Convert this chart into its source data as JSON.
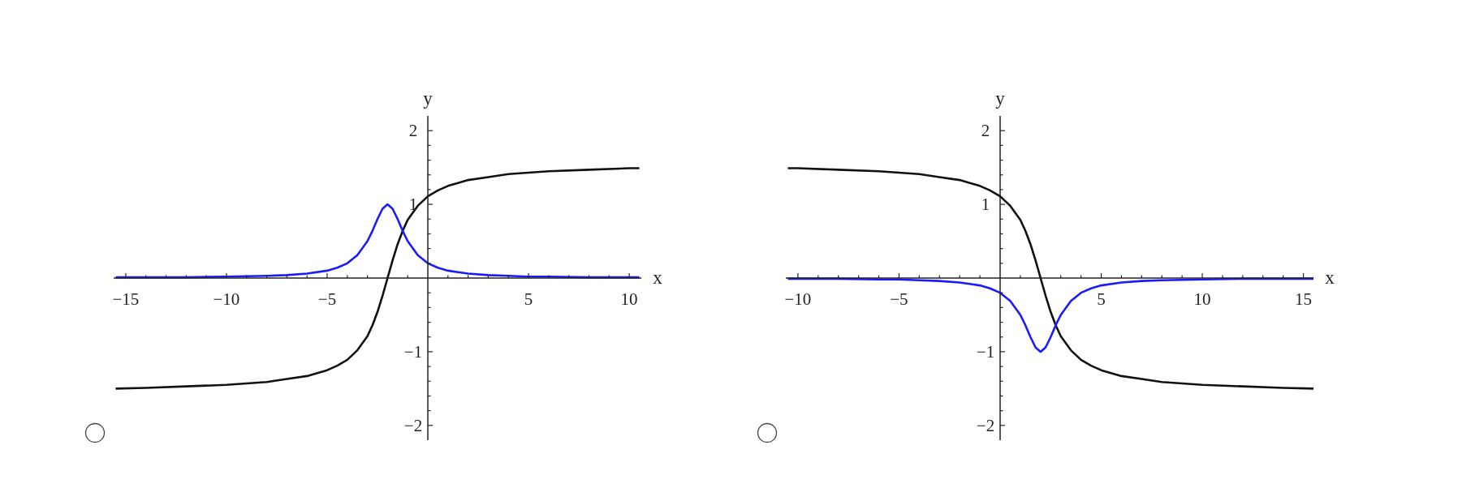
{
  "chart_data": [
    {
      "type": "line",
      "xlabel": "x",
      "ylabel": "y",
      "xlim": [
        -15.6,
        10.6
      ],
      "ylim": [
        -2.2,
        2.2
      ],
      "xticks": [
        {
          "value": -15,
          "label": "−15"
        },
        {
          "value": -14,
          "label": null
        },
        {
          "value": -13,
          "label": null
        },
        {
          "value": -12,
          "label": null
        },
        {
          "value": -11,
          "label": null
        },
        {
          "value": -10,
          "label": "−10"
        },
        {
          "value": -9,
          "label": null
        },
        {
          "value": -8,
          "label": null
        },
        {
          "value": -7,
          "label": null
        },
        {
          "value": -6,
          "label": null
        },
        {
          "value": -5,
          "label": "−5"
        },
        {
          "value": -4,
          "label": null
        },
        {
          "value": -3,
          "label": null
        },
        {
          "value": -2,
          "label": null
        },
        {
          "value": -1,
          "label": null
        },
        {
          "value": 1,
          "label": null
        },
        {
          "value": 2,
          "label": null
        },
        {
          "value": 3,
          "label": null
        },
        {
          "value": 4,
          "label": null
        },
        {
          "value": 5,
          "label": "5"
        },
        {
          "value": 6,
          "label": null
        },
        {
          "value": 7,
          "label": null
        },
        {
          "value": 8,
          "label": null
        },
        {
          "value": 9,
          "label": null
        },
        {
          "value": 10,
          "label": "10"
        }
      ],
      "yticks": [
        {
          "value": -2,
          "label": "−2"
        },
        {
          "value": -1.8,
          "label": null
        },
        {
          "value": -1.6,
          "label": null
        },
        {
          "value": -1.4,
          "label": null
        },
        {
          "value": -1.2,
          "label": null
        },
        {
          "value": -1,
          "label": "−1"
        },
        {
          "value": -0.8,
          "label": null
        },
        {
          "value": -0.6,
          "label": null
        },
        {
          "value": -0.4,
          "label": null
        },
        {
          "value": -0.2,
          "label": null
        },
        {
          "value": 0.2,
          "label": null
        },
        {
          "value": 0.4,
          "label": null
        },
        {
          "value": 0.6,
          "label": null
        },
        {
          "value": 0.8,
          "label": null
        },
        {
          "value": 1,
          "label": "1"
        },
        {
          "value": 1.2,
          "label": null
        },
        {
          "value": 1.4,
          "label": null
        },
        {
          "value": 1.6,
          "label": null
        },
        {
          "value": 1.8,
          "label": null
        },
        {
          "value": 2,
          "label": "2"
        }
      ],
      "x": [
        -15.5,
        -14,
        -12,
        -10,
        -8,
        -7,
        -6,
        -5,
        -4.5,
        -4,
        -3.5,
        -3,
        -2.75,
        -2.5,
        -2.25,
        -2,
        -1.75,
        -1.5,
        -1.25,
        -1,
        -0.5,
        0,
        0.5,
        1,
        1.5,
        2,
        3,
        4,
        5,
        6,
        8,
        10,
        10.5
      ],
      "series": [
        {
          "color": "#111111",
          "values": [
            -1.5,
            -1.49,
            -1.47,
            -1.45,
            -1.41,
            -1.37,
            -1.33,
            -1.25,
            -1.19,
            -1.11,
            -0.98,
            -0.79,
            -0.64,
            -0.46,
            -0.24,
            0,
            0.24,
            0.46,
            0.64,
            0.79,
            0.98,
            1.11,
            1.19,
            1.25,
            1.29,
            1.33,
            1.37,
            1.41,
            1.43,
            1.45,
            1.47,
            1.49,
            1.49
          ]
        },
        {
          "color": "#1a1aff",
          "values": [
            0.01,
            0.01,
            0.01,
            0.02,
            0.03,
            0.04,
            0.06,
            0.1,
            0.14,
            0.2,
            0.31,
            0.5,
            0.64,
            0.8,
            0.94,
            1,
            0.94,
            0.8,
            0.64,
            0.5,
            0.31,
            0.2,
            0.14,
            0.1,
            0.08,
            0.06,
            0.04,
            0.03,
            0.02,
            0.02,
            0.01,
            0.01,
            0.01
          ]
        }
      ],
      "grid": false,
      "legend": false,
      "marker": "none",
      "line_style": "solid"
    },
    {
      "type": "line",
      "xlabel": "x",
      "ylabel": "y",
      "xlim": [
        -10.6,
        15.5
      ],
      "ylim": [
        -2.2,
        2.2
      ],
      "xticks": [
        {
          "value": -10,
          "label": "−10"
        },
        {
          "value": -9,
          "label": null
        },
        {
          "value": -8,
          "label": null
        },
        {
          "value": -7,
          "label": null
        },
        {
          "value": -6,
          "label": null
        },
        {
          "value": -5,
          "label": "−5"
        },
        {
          "value": -4,
          "label": null
        },
        {
          "value": -3,
          "label": null
        },
        {
          "value": -2,
          "label": null
        },
        {
          "value": -1,
          "label": null
        },
        {
          "value": 1,
          "label": null
        },
        {
          "value": 2,
          "label": null
        },
        {
          "value": 3,
          "label": null
        },
        {
          "value": 4,
          "label": null
        },
        {
          "value": 5,
          "label": "5"
        },
        {
          "value": 6,
          "label": null
        },
        {
          "value": 7,
          "label": null
        },
        {
          "value": 8,
          "label": null
        },
        {
          "value": 9,
          "label": null
        },
        {
          "value": 10,
          "label": "10"
        },
        {
          "value": 11,
          "label": null
        },
        {
          "value": 12,
          "label": null
        },
        {
          "value": 13,
          "label": null
        },
        {
          "value": 14,
          "label": null
        },
        {
          "value": 15,
          "label": "15"
        }
      ],
      "yticks": [
        {
          "value": -2,
          "label": "−2"
        },
        {
          "value": -1.8,
          "label": null
        },
        {
          "value": -1.6,
          "label": null
        },
        {
          "value": -1.4,
          "label": null
        },
        {
          "value": -1.2,
          "label": null
        },
        {
          "value": -1,
          "label": "−1"
        },
        {
          "value": -0.8,
          "label": null
        },
        {
          "value": -0.6,
          "label": null
        },
        {
          "value": -0.4,
          "label": null
        },
        {
          "value": -0.2,
          "label": null
        },
        {
          "value": 0.2,
          "label": null
        },
        {
          "value": 0.4,
          "label": null
        },
        {
          "value": 0.6,
          "label": null
        },
        {
          "value": 0.8,
          "label": null
        },
        {
          "value": 1,
          "label": "1"
        },
        {
          "value": 1.2,
          "label": null
        },
        {
          "value": 1.4,
          "label": null
        },
        {
          "value": 1.6,
          "label": null
        },
        {
          "value": 1.8,
          "label": null
        },
        {
          "value": 2,
          "label": "2"
        }
      ],
      "x": [
        -10.5,
        -10,
        -8,
        -6,
        -5,
        -4,
        -3,
        -2,
        -1.5,
        -1,
        -0.5,
        0,
        0.5,
        1,
        1.25,
        1.5,
        1.75,
        2,
        2.25,
        2.5,
        2.75,
        3,
        3.5,
        4,
        4.5,
        5,
        6,
        7,
        8,
        10,
        12,
        14,
        15.5
      ],
      "series": [
        {
          "color": "#111111",
          "values": [
            1.49,
            1.49,
            1.47,
            1.45,
            1.43,
            1.41,
            1.37,
            1.33,
            1.29,
            1.25,
            1.19,
            1.11,
            0.98,
            0.79,
            0.64,
            0.46,
            0.24,
            0,
            -0.24,
            -0.46,
            -0.64,
            -0.79,
            -0.98,
            -1.11,
            -1.19,
            -1.25,
            -1.33,
            -1.37,
            -1.41,
            -1.45,
            -1.47,
            -1.49,
            -1.5
          ]
        },
        {
          "color": "#1a1aff",
          "values": [
            -0.01,
            -0.01,
            -0.01,
            -0.02,
            -0.02,
            -0.03,
            -0.04,
            -0.06,
            -0.08,
            -0.1,
            -0.14,
            -0.2,
            -0.31,
            -0.5,
            -0.64,
            -0.8,
            -0.94,
            -1,
            -0.94,
            -0.8,
            -0.64,
            -0.5,
            -0.31,
            -0.2,
            -0.14,
            -0.1,
            -0.06,
            -0.04,
            -0.03,
            -0.02,
            -0.01,
            -0.01,
            -0.01
          ]
        }
      ],
      "grid": false,
      "legend": false,
      "marker": "none",
      "line_style": "solid"
    }
  ]
}
